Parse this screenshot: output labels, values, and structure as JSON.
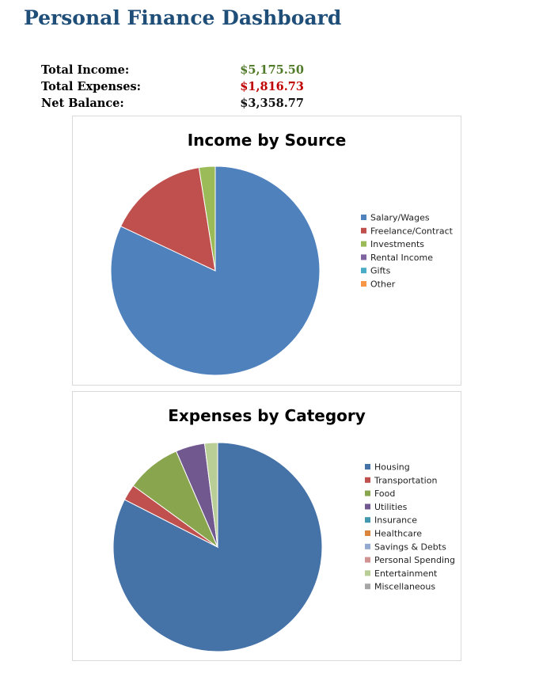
{
  "page": {
    "title": "Personal Finance Dashboard"
  },
  "summary": {
    "income_label": "Total Income:",
    "income_value": "$5,175.50",
    "expenses_label": "Total Expenses:",
    "expenses_value": "$1,816.73",
    "net_label": "Net Balance:",
    "net_value": "$3,358.77"
  },
  "chart_data": [
    {
      "type": "pie",
      "title": "Income by Source",
      "categories": [
        "Salary/Wages",
        "Freelance/Contract",
        "Investments",
        "Rental Income",
        "Gifts",
        "Other"
      ],
      "values": [
        82,
        15.5,
        2.5,
        0,
        0,
        0
      ],
      "colors": [
        "#4F81BD",
        "#C0504D",
        "#9BBB59",
        "#8064A2",
        "#4BACC6",
        "#F79646"
      ],
      "legend": "right"
    },
    {
      "type": "pie",
      "title": "Expenses by Category",
      "categories": [
        "Housing",
        "Transportation",
        "Food",
        "Utilities",
        "Insurance",
        "Healthcare",
        "Savings & Debts",
        "Personal Spending",
        "Entertainment",
        "Miscellaneous"
      ],
      "values": [
        82.5,
        2.5,
        8.5,
        4.5,
        0,
        0,
        0,
        0,
        2,
        0
      ],
      "colors": [
        "#4572A7",
        "#C0504D",
        "#89A54E",
        "#71588F",
        "#4198AF",
        "#DB843D",
        "#93A9CF",
        "#D19392",
        "#B9CD96",
        "#A6A6A6"
      ],
      "legend": "right"
    }
  ]
}
